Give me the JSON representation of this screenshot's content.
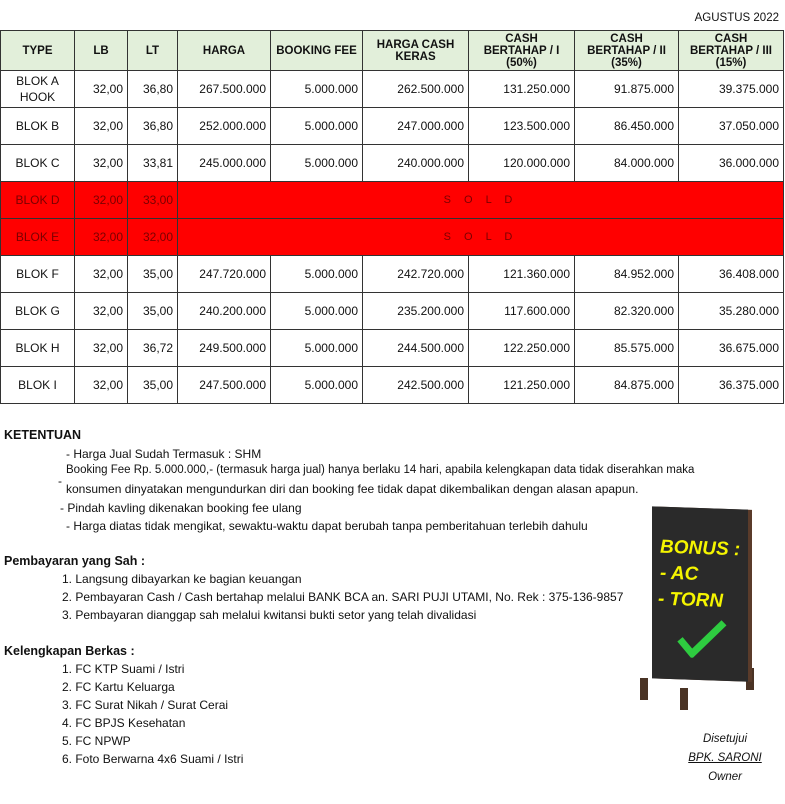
{
  "period": "AGUSTUS 2022",
  "headers": [
    "TYPE",
    "LB",
    "LT",
    "HARGA",
    "BOOKING FEE",
    "HARGA CASH KERAS",
    "CASH BERTAHAP / I (50%)",
    "CASH BERTAHAP / II (35%)",
    "CASH BERTAHAP / III (15%)"
  ],
  "rows": [
    {
      "type": "BLOK A HOOK",
      "lb": "32,00",
      "lt": "36,80",
      "harga": "267.500.000",
      "bf": "5.000.000",
      "hck": "262.500.000",
      "c1": "131.250.000",
      "c2": "91.875.000",
      "c3": "39.375.000"
    },
    {
      "type": "BLOK B",
      "lb": "32,00",
      "lt": "36,80",
      "harga": "252.000.000",
      "bf": "5.000.000",
      "hck": "247.000.000",
      "c1": "123.500.000",
      "c2": "86.450.000",
      "c3": "37.050.000"
    },
    {
      "type": "BLOK C",
      "lb": "32,00",
      "lt": "33,81",
      "harga": "245.000.000",
      "bf": "5.000.000",
      "hck": "240.000.000",
      "c1": "120.000.000",
      "c2": "84.000.000",
      "c3": "36.000.000"
    },
    {
      "type": "BLOK D",
      "lb": "32,00",
      "lt": "33,00",
      "sold": "S O L D"
    },
    {
      "type": "BLOK E",
      "lb": "32,00",
      "lt": "32,00",
      "sold": "S O L D"
    },
    {
      "type": "BLOK F",
      "lb": "32,00",
      "lt": "35,00",
      "harga": "247.720.000",
      "bf": "5.000.000",
      "hck": "242.720.000",
      "c1": "121.360.000",
      "c2": "84.952.000",
      "c3": "36.408.000"
    },
    {
      "type": "BLOK G",
      "lb": "32,00",
      "lt": "35,00",
      "harga": "240.200.000",
      "bf": "5.000.000",
      "hck": "235.200.000",
      "c1": "117.600.000",
      "c2": "82.320.000",
      "c3": "35.280.000"
    },
    {
      "type": "BLOK H",
      "lb": "32,00",
      "lt": "36,72",
      "harga": "249.500.000",
      "bf": "5.000.000",
      "hck": "244.500.000",
      "c1": "122.250.000",
      "c2": "85.575.000",
      "c3": "36.675.000"
    },
    {
      "type": "BLOK I",
      "lb": "32,00",
      "lt": "35,00",
      "harga": "247.500.000",
      "bf": "5.000.000",
      "hck": "242.500.000",
      "c1": "121.250.000",
      "c2": "84.875.000",
      "c3": "36.375.000"
    }
  ],
  "colors": {
    "header_bg": "#e2efda",
    "sold_bg": "#ff0000",
    "sign_text": "#f5f500",
    "check": "#2ecc40"
  },
  "ketentuan": {
    "title": "KETENTUAN",
    "items": [
      "-  Harga Jual Sudah Termasuk : SHM",
      "Booking Fee Rp. 5.000.000,-  (termasuk harga jual) hanya berlaku 14 hari, apabila kelengkapan data tidak diserahkan maka",
      "konsumen dinyatakan mengundurkan diri dan booking fee tidak dapat dikembalikan dengan alasan apapun.",
      "- Pindah kavling dikenakan booking fee ulang",
      "-  Harga diatas tidak mengikat, sewaktu-waktu dapat berubah tanpa pemberitahuan terlebih dahulu"
    ]
  },
  "pembayaran": {
    "title": "Pembayaran yang Sah :",
    "items": [
      "1. Langsung dibayarkan ke bagian keuangan",
      "2. Pembayaran Cash / Cash bertahap melalui BANK BCA an. SARI PUJI UTAMI, No. Rek : 375-136-9857",
      "3. Pembayaran dianggap sah melalui kwitansi bukti setor yang telah divalidasi"
    ]
  },
  "berkas": {
    "title": "Kelengkapan Berkas :",
    "items": [
      "1. FC KTP Suami / Istri",
      "2. FC Kartu Keluarga",
      "3. FC Surat Nikah / Surat Cerai",
      "4. FC BPJS Kesehatan",
      "5. FC NPWP",
      "6. Foto Berwarna 4x6 Suami / Istri"
    ]
  },
  "sign": {
    "lines": [
      "BONUS :",
      "- AC",
      "- TORN"
    ]
  },
  "signature": {
    "label": "Disetujui",
    "name": "BPK. SARONI",
    "role": "Owner"
  }
}
